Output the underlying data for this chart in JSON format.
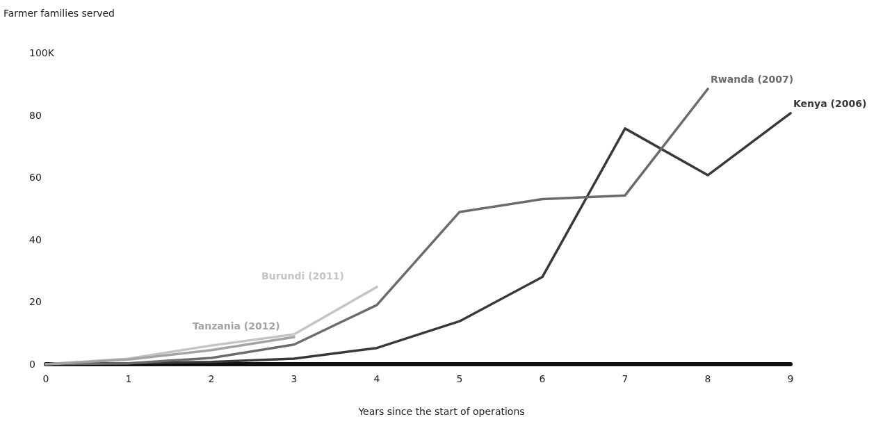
{
  "chart_data": {
    "type": "line",
    "ylabel": "Farmer families served",
    "xlabel": "Years since the start of operations",
    "x": [
      0,
      1,
      2,
      3,
      4,
      5,
      6,
      7,
      8,
      9
    ],
    "series": [
      {
        "name": "Kenya (2006)",
        "color": "#383838",
        "values": [
          0,
          0.3,
          0.7,
          1.8,
          5.2,
          13.8,
          28,
          75.7,
          60.7,
          80.6
        ]
      },
      {
        "name": "Rwanda (2007)",
        "color": "#6b6b6b",
        "values": [
          0,
          0.3,
          2,
          6.3,
          19,
          48.9,
          53,
          54.2,
          88.4,
          null
        ]
      },
      {
        "name": "Burundi (2011)",
        "color": "#c4c4c4",
        "values": [
          0,
          1.8,
          6,
          9.6,
          24.8,
          null,
          null,
          null,
          null,
          null
        ]
      },
      {
        "name": "Tanzania (2012)",
        "color": "#a3a3a3",
        "values": [
          0,
          1.5,
          4.5,
          8.7,
          null,
          null,
          null,
          null,
          null,
          null
        ]
      }
    ],
    "xlim": [
      0,
      9
    ],
    "xticks": [
      0,
      1,
      2,
      3,
      4,
      5,
      6,
      7,
      8,
      9
    ],
    "ylim": [
      0,
      100
    ],
    "yticks": [
      0,
      20,
      40,
      60,
      80,
      {
        "value": 100,
        "label": "100K"
      }
    ],
    "grid": false,
    "legend": false,
    "marker": "none",
    "line_style": "solid"
  }
}
